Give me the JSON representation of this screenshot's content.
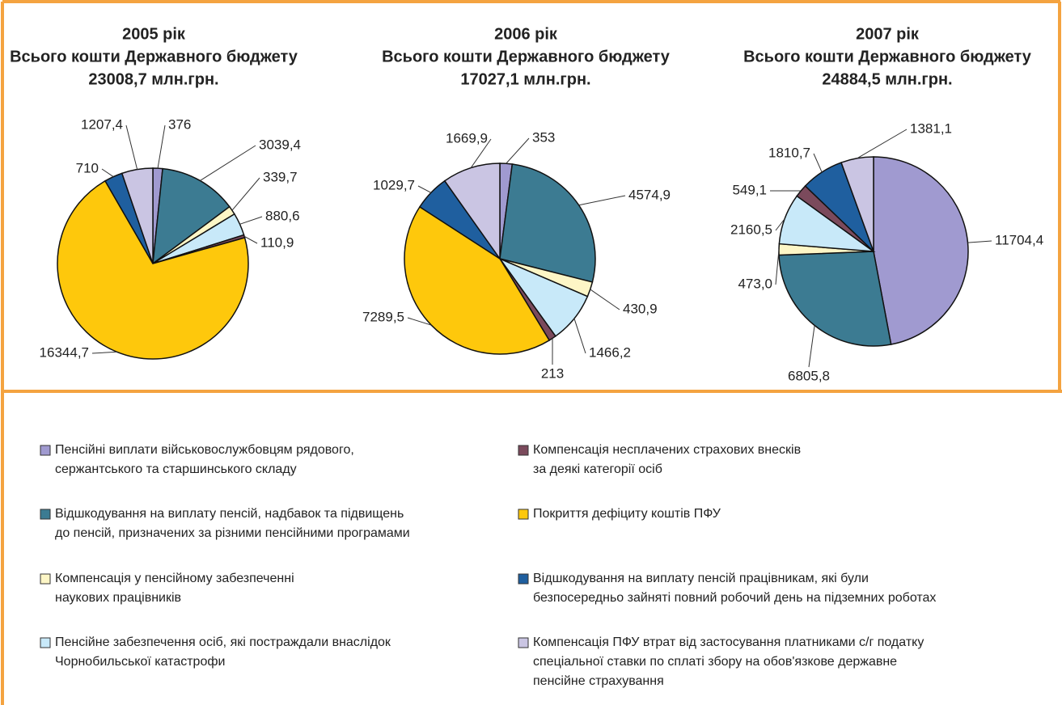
{
  "legend": [
    {
      "lines": [
        "Пенсійні виплати військовослужбовцям рядового,",
        "сержантського та старшинського складу"
      ],
      "color": "#a09ad0"
    },
    {
      "lines": [
        "Відшкодування на виплату пенсій, надбавок та підвищень",
        "до пенсій, призначених за різними пенсійними програмами"
      ],
      "color": "#3c7b92"
    },
    {
      "lines": [
        "Компенсація у пенсійному забезпеченні",
        "наукових працівників"
      ],
      "color": "#fdf6c6"
    },
    {
      "lines": [
        "Пенсійне забезпечення осіб, які постраждали внаслідок",
        "Чорнобильської катастрофи"
      ],
      "color": "#c8e9f9"
    },
    {
      "lines": [
        "Компенсація несплачених страхових внесків",
        "за деякі категорії осіб"
      ],
      "color": "#7b4a5c"
    },
    {
      "lines": [
        "Покриття дефіциту коштів ПФУ"
      ],
      "color": "#fec80c"
    },
    {
      "lines": [
        "Відшкодування на виплату пенсій працівникам, які були",
        " безпосередньо зайняті повний робочий день на підземних роботах"
      ],
      "color": "#1f5f9f"
    },
    {
      "lines": [
        "Компенсація ПФУ втрат від застосування платниками с/г податку",
        "спеціальної ставки по сплаті збору на обов'язкове державне",
        "пенсійне страхування"
      ],
      "color": "#cac5e3"
    }
  ],
  "chart_data": [
    {
      "type": "pie",
      "title": "2005 рік",
      "subtitle": [
        "Всього кошти Державного бюджету",
        "23008,7 млн.грн."
      ],
      "values": [
        376,
        3039.4,
        339.7,
        880.6,
        110.9,
        16344.7,
        710,
        1207.4
      ],
      "value_labels": [
        "376",
        "3039,4",
        "339,7",
        "880,6",
        "110,9",
        "16344,7",
        "710",
        "1207,4"
      ]
    },
    {
      "type": "pie",
      "title": "2006 рік",
      "subtitle": [
        "Всього кошти Державного бюджету",
        "17027,1 млн.грн."
      ],
      "values": [
        353,
        4574.9,
        430.9,
        1466.2,
        213,
        7289.5,
        1029.7,
        1669.9
      ],
      "value_labels": [
        "353",
        "4574,9",
        "430,9",
        "1466,2",
        "213",
        "7289,5",
        "1029,7",
        "1669,9"
      ]
    },
    {
      "type": "pie",
      "title": "2007 рік",
      "subtitle": [
        "Всього кошти Державного бюджету",
        "24884,5 млн.грн."
      ],
      "values": [
        11704.4,
        6805.8,
        473.0,
        2160.5,
        549.1,
        null,
        1810.7,
        1381.1
      ],
      "value_labels": [
        "11704,4",
        "6805,8",
        "473,0",
        "2160,5",
        "549,1",
        null,
        "1810,7",
        "1381,1"
      ]
    }
  ]
}
